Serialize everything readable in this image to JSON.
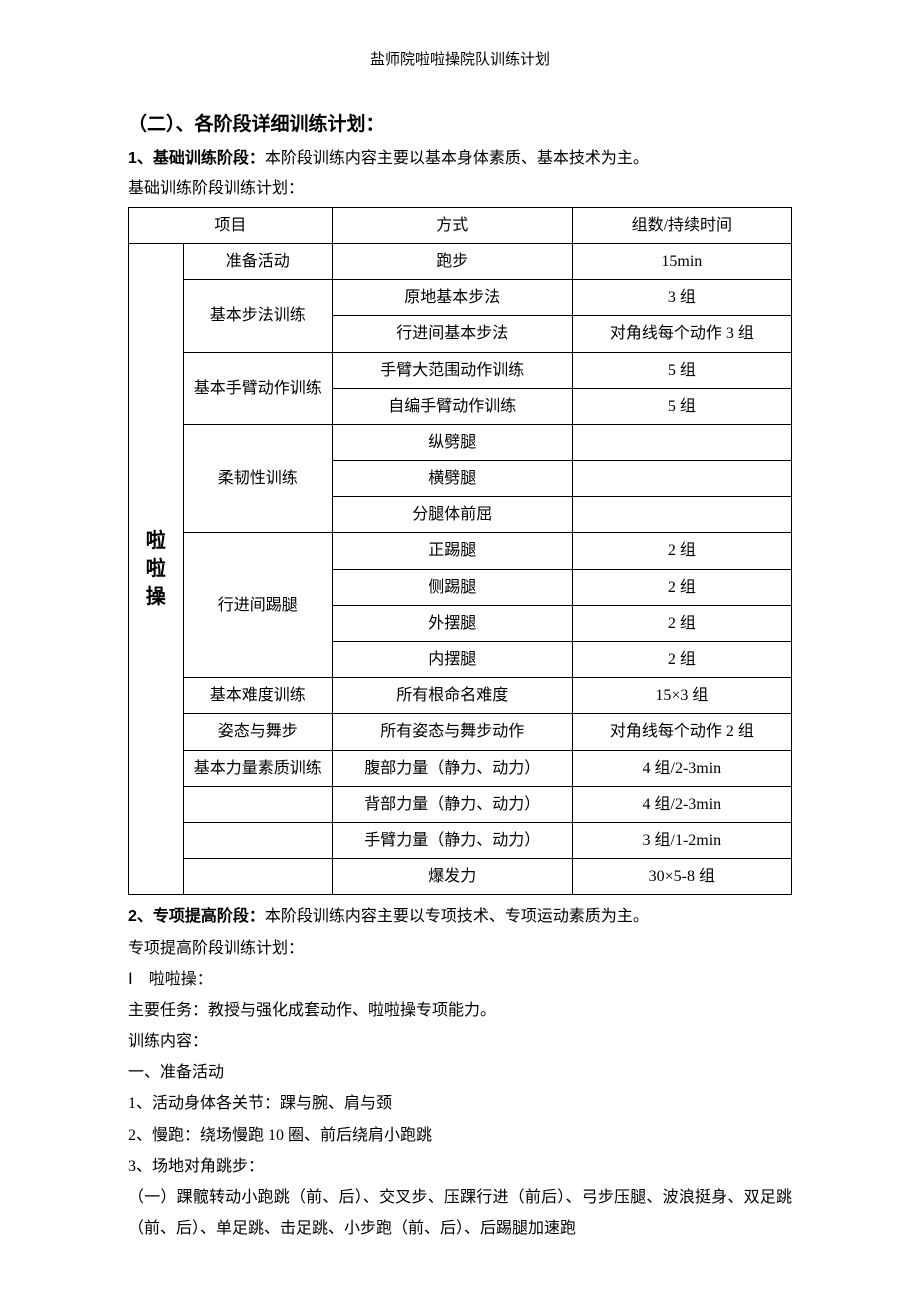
{
  "doc_header": "盐师院啦啦操院队训练计划",
  "section_title": "（二）、各阶段详细训练计划：",
  "stage1_lead": "1、基础训练阶段：",
  "stage1_desc": "本阶段训练内容主要以基本身体素质、基本技术为主。",
  "stage1_subtitle": "基础训练阶段训练计划：",
  "table": {
    "headers": {
      "item": "项目",
      "method": "方式",
      "sets": "组数/持续时间"
    },
    "category_label": "啦啦操",
    "rows": [
      {
        "item": "准备活动",
        "method": "跑步",
        "sets": "15min",
        "item_rowspan": 1
      },
      {
        "item": "基本步法训练",
        "method": "原地基本步法",
        "sets": "3 组",
        "item_rowspan": 2
      },
      {
        "method": "行进间基本步法",
        "sets": "对角线每个动作 3 组"
      },
      {
        "item": "基本手臂动作训练",
        "method": "手臂大范围动作训练",
        "sets": "5 组",
        "item_rowspan": 2
      },
      {
        "method": "自编手臂动作训练",
        "sets": "5 组"
      },
      {
        "item": "柔韧性训练",
        "method": "纵劈腿",
        "sets": "",
        "item_rowspan": 3
      },
      {
        "method": "横劈腿",
        "sets": ""
      },
      {
        "method": "分腿体前屈",
        "sets": ""
      },
      {
        "item": "行进间踢腿",
        "method": "正踢腿",
        "sets": "2 组",
        "item_rowspan": 4
      },
      {
        "method": "侧踢腿",
        "sets": "2 组"
      },
      {
        "method": "外摆腿",
        "sets": "2 组"
      },
      {
        "method": "内摆腿",
        "sets": "2 组"
      },
      {
        "item": "基本难度训练",
        "method": "所有根命名难度",
        "sets": "15×3 组",
        "item_rowspan": 1
      },
      {
        "item": "姿态与舞步",
        "method": "所有姿态与舞步动作",
        "sets": "对角线每个动作 2 组",
        "item_rowspan": 1
      },
      {
        "item": "基本力量素质训练",
        "method": "腹部力量（静力、动力）",
        "sets": "4 组/2-3min",
        "item_rowspan": 1
      },
      {
        "item": "",
        "method": "背部力量（静力、动力）",
        "sets": "4 组/2-3min",
        "item_rowspan": 1
      },
      {
        "item": "",
        "method": "手臂力量（静力、动力）",
        "sets": "3 组/1-2min",
        "item_rowspan": 1
      },
      {
        "item": "",
        "method": "爆发力",
        "sets": "30×5-8 组",
        "item_rowspan": 1
      }
    ]
  },
  "stage2_lead": "2、专项提高阶段：",
  "stage2_desc": "本阶段训练内容主要以专项技术、专项运动素质为主。",
  "stage2_subtitle": "专项提高阶段训练计划：",
  "stage2_lines": [
    "Ⅰ　啦啦操：",
    "主要任务：教授与强化成套动作、啦啦操专项能力。",
    "训练内容：",
    "一、准备活动",
    "1、活动身体各关节：踝与腕、肩与颈",
    "2、慢跑：绕场慢跑 10 圈、前后绕肩小跑跳",
    "3、场地对角跳步：",
    "（一）踝髋转动小跑跳（前、后）、交叉步、压踝行进（前后）、弓步压腿、波浪挺身、双足跳（前、后）、单足跳、击足跳、小步跑（前、后）、后踢腿加速跑"
  ]
}
